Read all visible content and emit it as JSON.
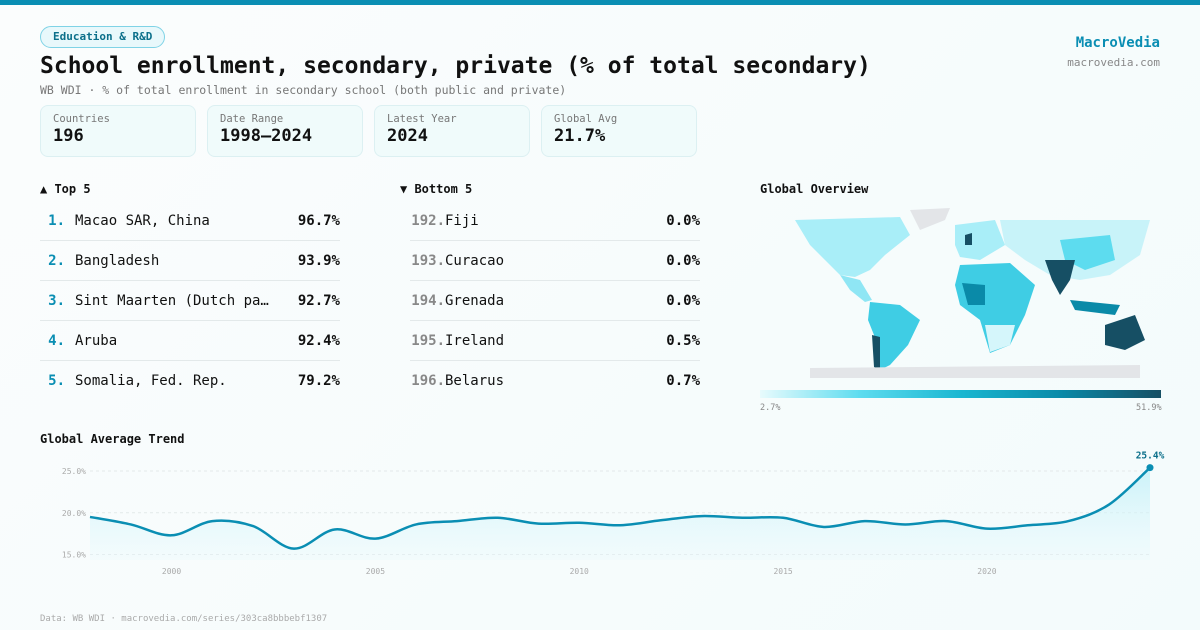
{
  "category_tag": "Education & R&D",
  "title": "School enrollment, secondary, private (% of total secondary)",
  "subtitle": "WB WDI · % of total enrollment in secondary school (both public and private)",
  "brand": {
    "name": "MacroVedia",
    "url": "macrovedia.com"
  },
  "stats": [
    {
      "label": "Countries",
      "value": "196"
    },
    {
      "label": "Date Range",
      "value": "1998–2024"
    },
    {
      "label": "Latest Year",
      "value": "2024"
    },
    {
      "label": "Global Avg",
      "value": "21.7%"
    }
  ],
  "top5": {
    "title": "▲ Top 5",
    "items": [
      {
        "rank": "1.",
        "name": "Macao SAR, China",
        "value": "96.7%"
      },
      {
        "rank": "2.",
        "name": "Bangladesh",
        "value": "93.9%"
      },
      {
        "rank": "3.",
        "name": "Sint Maarten (Dutch pa…",
        "value": "92.7%"
      },
      {
        "rank": "4.",
        "name": "Aruba",
        "value": "92.4%"
      },
      {
        "rank": "5.",
        "name": "Somalia, Fed. Rep.",
        "value": "79.2%"
      }
    ]
  },
  "bottom5": {
    "title": "▼ Bottom 5",
    "items": [
      {
        "rank": "192.",
        "name": "Fiji",
        "value": "0.0%"
      },
      {
        "rank": "193.",
        "name": "Curacao",
        "value": "0.0%"
      },
      {
        "rank": "194.",
        "name": "Grenada",
        "value": "0.0%"
      },
      {
        "rank": "195.",
        "name": "Ireland",
        "value": "0.5%"
      },
      {
        "rank": "196.",
        "name": "Belarus",
        "value": "0.7%"
      }
    ]
  },
  "map": {
    "title": "Global Overview",
    "legend_min": "2.7%",
    "legend_max": "51.9%",
    "colors": [
      "#e8fbfd",
      "#5ddcef",
      "#1ab7d1",
      "#0a8aa8",
      "#164f64"
    ]
  },
  "chart_data": {
    "type": "area",
    "title": "Global Average Trend",
    "x": [
      1998,
      1999,
      2000,
      2001,
      2002,
      2003,
      2004,
      2005,
      2006,
      2007,
      2008,
      2009,
      2010,
      2011,
      2012,
      2013,
      2014,
      2015,
      2016,
      2017,
      2018,
      2019,
      2020,
      2021,
      2022,
      2023,
      2024
    ],
    "y": [
      19.5,
      18.6,
      17.3,
      19.0,
      18.4,
      15.7,
      18.0,
      16.9,
      18.6,
      19.0,
      19.4,
      18.7,
      18.8,
      18.5,
      19.1,
      19.6,
      19.4,
      19.4,
      18.3,
      19.0,
      18.6,
      19.0,
      18.1,
      18.5,
      19.0,
      21.0,
      25.4
    ],
    "y_ticks": [
      "15.0%",
      "20.0%",
      "25.0%"
    ],
    "y_tick_values": [
      15,
      20,
      25
    ],
    "x_ticks": [
      "2000",
      "2005",
      "2010",
      "2015",
      "2020"
    ],
    "ylim": [
      14.9,
      25.4
    ],
    "last_label": "25.4%",
    "color": "#0a8eb3",
    "grid": true
  },
  "footer": "Data: WB WDI · macrovedia.com/series/303ca8bbbebf1307"
}
